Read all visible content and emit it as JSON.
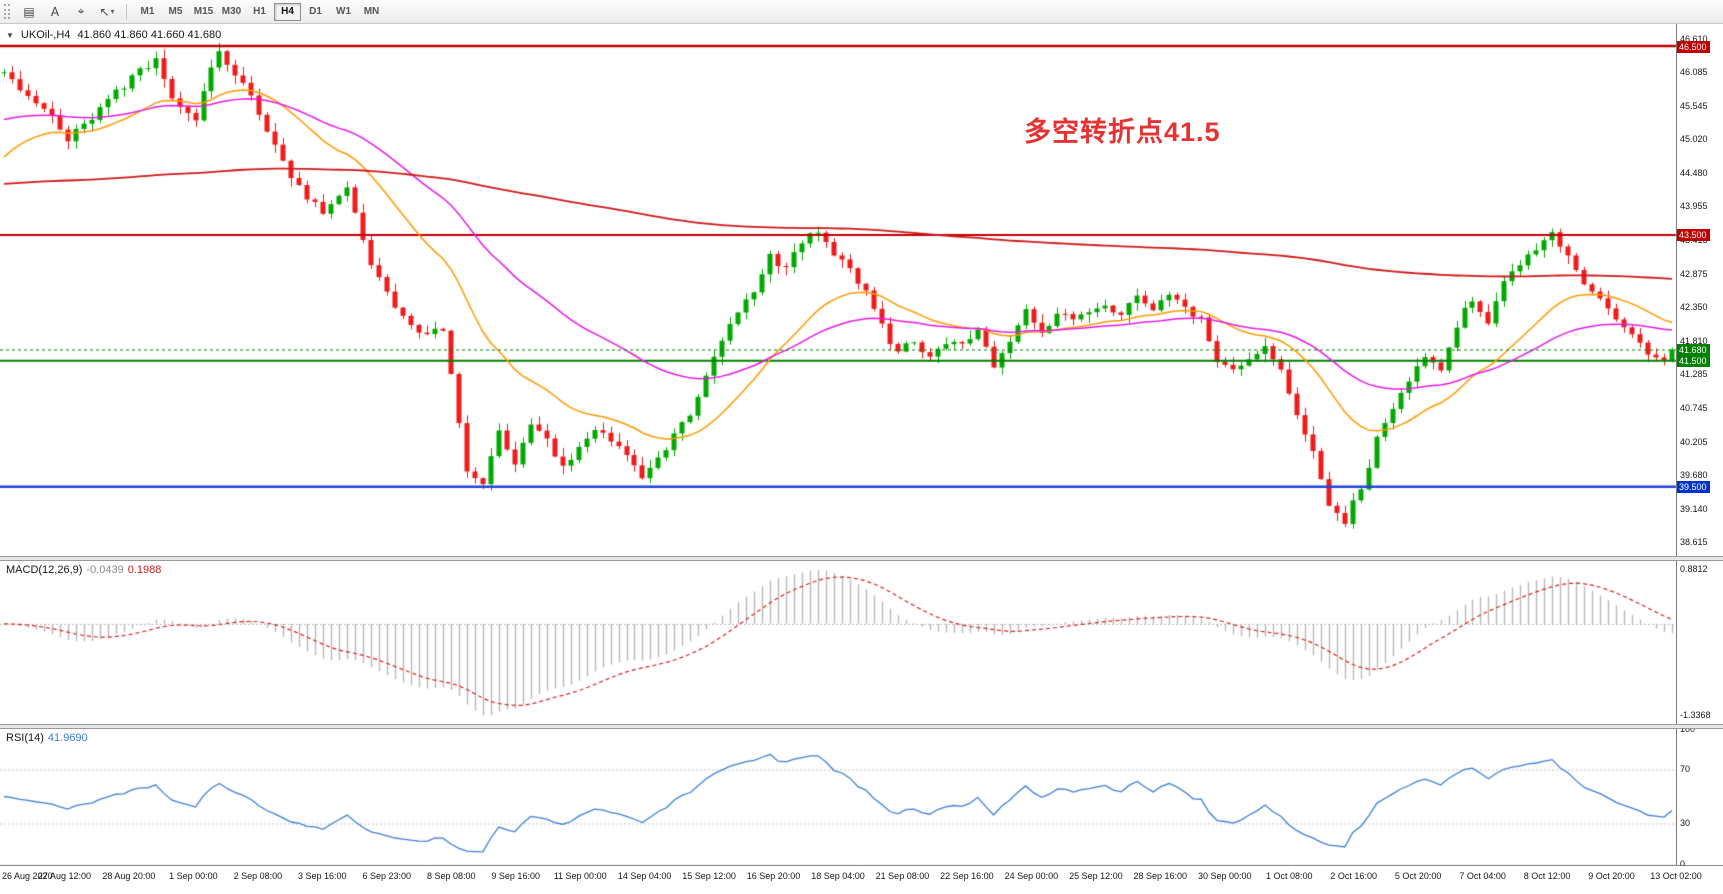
{
  "toolbar": {
    "icons": [
      {
        "name": "chart-window-icon",
        "glyph": "▤"
      },
      {
        "name": "text-annotation-icon",
        "glyph": "A"
      },
      {
        "name": "crosshair-tool-icon",
        "glyph": "⌖"
      },
      {
        "name": "cursor-tool-icon",
        "glyph": "↖",
        "dropdown": true
      }
    ],
    "timeframes": [
      {
        "label": "M1"
      },
      {
        "label": "M5"
      },
      {
        "label": "M15"
      },
      {
        "label": "M30"
      },
      {
        "label": "H1"
      },
      {
        "label": "H4",
        "selected": true
      },
      {
        "label": "D1"
      },
      {
        "label": "W1"
      },
      {
        "label": "MN"
      }
    ]
  },
  "chart": {
    "title": {
      "dropdown_glyph": "▼",
      "symbol_period": "UKOil-,H4",
      "ohlc": "41.860 41.860 41.660 41.680"
    },
    "annotation": {
      "text": "多空转折点41.5",
      "color": "#e53333"
    },
    "levels": [
      {
        "price": 46.5,
        "color": "#c00000",
        "width": 2.5
      },
      {
        "price": 43.5,
        "color": "#c00000",
        "width": 2
      },
      {
        "price": 41.5,
        "color": "#007f00",
        "width": 2
      },
      {
        "price": 39.5,
        "color": "#2244dd",
        "width": 2.5
      }
    ],
    "price_axis": {
      "ticks": [
        "46.610",
        "46.085",
        "45.545",
        "45.020",
        "44.480",
        "43.955",
        "43.415",
        "42.875",
        "42.350",
        "41.810",
        "41.285",
        "40.745",
        "40.205",
        "39.680",
        "39.140",
        "38.615"
      ],
      "badges": [
        {
          "value": "46.500",
          "price": 46.5,
          "color": "#c00000"
        },
        {
          "value": "43.500",
          "price": 43.5,
          "color": "#c00000"
        },
        {
          "value": "41.500",
          "price": 41.5,
          "color": "#008000"
        },
        {
          "value": "39.500",
          "price": 39.5,
          "color": "#0033cc"
        }
      ],
      "current": {
        "value": "41.680",
        "price": 41.68,
        "color": "#008000"
      }
    },
    "time_axis": {
      "labels": [
        "26 Aug 2020",
        "27 Aug 12:00",
        "28 Aug 20:00",
        "1 Sep 00:00",
        "2 Sep 08:00",
        "3 Sep 16:00",
        "6 Sep 23:00",
        "8 Sep 08:00",
        "9 Sep 16:00",
        "11 Sep 00:00",
        "14 Sep 04:00",
        "15 Sep 12:00",
        "16 Sep 20:00",
        "18 Sep 04:00",
        "21 Sep 08:00",
        "22 Sep 16:00",
        "24 Sep 00:00",
        "25 Sep 12:00",
        "28 Sep 16:00",
        "30 Sep 00:00",
        "1 Oct 08:00",
        "2 Oct 16:00",
        "5 Oct 20:00",
        "7 Oct 04:00",
        "8 Oct 12:00",
        "9 Oct 20:00",
        "13 Oct 02:00"
      ]
    }
  },
  "indicators": {
    "macd": {
      "label": "MACD(12,26,9)",
      "value1": "-0.0439",
      "value2": "0.1988",
      "axis_max": "0.8812",
      "axis_min": "-1.3368"
    },
    "rsi": {
      "label": "RSI(14)",
      "value": "41.9690",
      "ticks": [
        {
          "label": "100",
          "value": 100
        },
        {
          "label": "70",
          "value": 70
        },
        {
          "label": "30",
          "value": 30
        },
        {
          "label": "0",
          "value": 0
        }
      ],
      "level_lines": [
        70,
        30
      ]
    }
  },
  "colors": {
    "candle_up": "#00a800",
    "candle_down": "#ee1c1c",
    "ma_fast_orange": "#ff9900",
    "ma_mid_magenta": "#e61ae6",
    "ma_slow_red": "#d01818",
    "macd_hist": "#b8b8b8",
    "macd_signal": "#dd2222",
    "rsi_line": "#3f7fd6",
    "axis_border": "#7a7a7a"
  },
  "chart_data": {
    "type": "candlestick",
    "symbol": "UKOil-",
    "period": "H4",
    "bar_count": 210,
    "last_close": 41.68,
    "price_domain": [
      38.4,
      46.85
    ],
    "h_lines": [
      46.5,
      43.5,
      41.5,
      39.5
    ],
    "price_path": [
      [
        0,
        46.05
      ],
      [
        4,
        45.65
      ],
      [
        8,
        45.05
      ],
      [
        12,
        45.55
      ],
      [
        16,
        46.0
      ],
      [
        19,
        46.25
      ],
      [
        21,
        45.7
      ],
      [
        24,
        45.35
      ],
      [
        27,
        46.45
      ],
      [
        30,
        45.9
      ],
      [
        33,
        45.2
      ],
      [
        36,
        44.35
      ],
      [
        40,
        43.85
      ],
      [
        43,
        44.3
      ],
      [
        46,
        43.1
      ],
      [
        49,
        42.3
      ],
      [
        52,
        41.95
      ],
      [
        55,
        42.05
      ],
      [
        56,
        41.4
      ],
      [
        58,
        39.9
      ],
      [
        60,
        39.55
      ],
      [
        62,
        40.35
      ],
      [
        64,
        39.95
      ],
      [
        66,
        40.55
      ],
      [
        68,
        40.25
      ],
      [
        70,
        39.8
      ],
      [
        72,
        40.1
      ],
      [
        74,
        40.35
      ],
      [
        76,
        40.15
      ],
      [
        78,
        39.9
      ],
      [
        80,
        39.65
      ],
      [
        82,
        40.0
      ],
      [
        84,
        40.35
      ],
      [
        86,
        40.7
      ],
      [
        88,
        41.3
      ],
      [
        90,
        41.8
      ],
      [
        92,
        42.25
      ],
      [
        94,
        42.6
      ],
      [
        96,
        43.2
      ],
      [
        98,
        42.95
      ],
      [
        100,
        43.3
      ],
      [
        102,
        43.55
      ],
      [
        104,
        43.2
      ],
      [
        106,
        42.9
      ],
      [
        108,
        42.55
      ],
      [
        110,
        42.0
      ],
      [
        112,
        41.6
      ],
      [
        114,
        41.75
      ],
      [
        116,
        41.6
      ],
      [
        118,
        41.85
      ],
      [
        120,
        41.7
      ],
      [
        122,
        41.9
      ],
      [
        124,
        41.45
      ],
      [
        126,
        41.8
      ],
      [
        128,
        42.3
      ],
      [
        130,
        42.0
      ],
      [
        132,
        42.25
      ],
      [
        134,
        42.1
      ],
      [
        136,
        42.3
      ],
      [
        138,
        42.5
      ],
      [
        140,
        42.3
      ],
      [
        142,
        42.6
      ],
      [
        144,
        42.4
      ],
      [
        146,
        42.65
      ],
      [
        148,
        42.3
      ],
      [
        150,
        42.2
      ],
      [
        152,
        41.55
      ],
      [
        154,
        41.3
      ],
      [
        156,
        41.6
      ],
      [
        158,
        41.75
      ],
      [
        160,
        41.35
      ],
      [
        162,
        40.6
      ],
      [
        164,
        40.15
      ],
      [
        166,
        39.3
      ],
      [
        168,
        38.95
      ],
      [
        170,
        39.5
      ],
      [
        172,
        40.3
      ],
      [
        174,
        40.85
      ],
      [
        176,
        41.3
      ],
      [
        178,
        41.65
      ],
      [
        180,
        41.45
      ],
      [
        182,
        42.1
      ],
      [
        184,
        42.5
      ],
      [
        186,
        42.2
      ],
      [
        188,
        42.8
      ],
      [
        190,
        43.1
      ],
      [
        192,
        43.35
      ],
      [
        194,
        43.45
      ],
      [
        196,
        43.1
      ],
      [
        198,
        42.7
      ],
      [
        200,
        42.5
      ],
      [
        202,
        42.2
      ],
      [
        204,
        41.9
      ],
      [
        206,
        41.55
      ],
      [
        208,
        41.6
      ],
      [
        209,
        41.68
      ]
    ],
    "overlays": [
      {
        "name": "ma-fast",
        "period": 21,
        "seed": 44.6,
        "color_key": "ma_fast_orange",
        "width": 1.5
      },
      {
        "name": "ma-mid",
        "period": 48,
        "seed": 45.3,
        "color_key": "ma_mid_magenta",
        "width": 1.5
      },
      {
        "name": "ma-slow",
        "period": 350,
        "seed": 44.3,
        "color_key": "ma_slow_red",
        "width": 1.8
      }
    ],
    "macd": {
      "fast": 12,
      "slow": 26,
      "signal": 9
    },
    "rsi": {
      "period": 14
    }
  }
}
